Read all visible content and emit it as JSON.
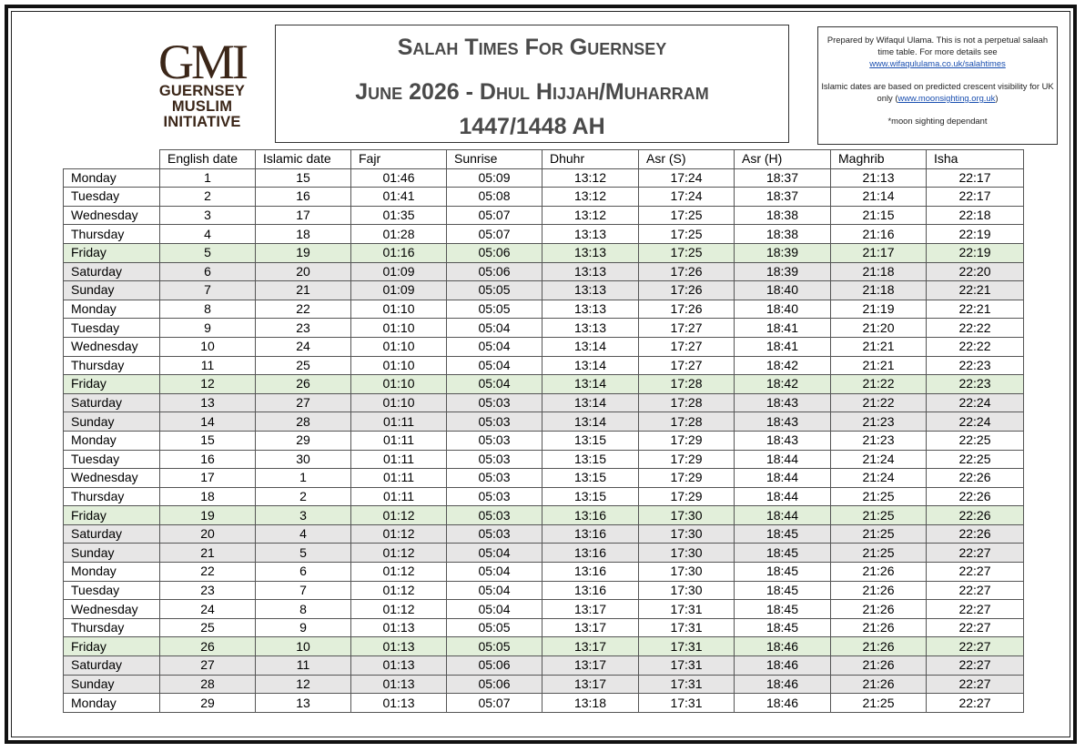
{
  "logo": {
    "mark": "GMI",
    "line1": "GUERNSEY",
    "line2": "MUSLIM",
    "line3": "INITIATIVE"
  },
  "title": {
    "line1": "Salah Times For Guernsey",
    "line2": "June 2026 - Dhul Hijjah/Muharram",
    "line3": "1447/1448 AH"
  },
  "notes": {
    "p1_text": "Prepared by Wifaqul Ulama.  This is not a perpetual salaah time table. For more details see",
    "p1_link": "www.wifaqululama.co.uk/salahtimes",
    "p2_text": "Islamic dates are based on predicted crescent visibility for UK only (",
    "p2_link": "www.moonsighting.org.uk",
    "p2_close": ")",
    "p3_text": "*moon sighting dependant"
  },
  "table": {
    "headers": [
      "",
      "English date",
      "Islamic date",
      "Fajr",
      "Sunrise",
      "Dhuhr",
      "Asr (S)",
      "Asr (H)",
      "Maghrib",
      "Isha"
    ],
    "rows": [
      [
        "Monday",
        "1",
        "15",
        "01:46",
        "05:09",
        "13:12",
        "17:24",
        "18:37",
        "21:13",
        "22:17"
      ],
      [
        "Tuesday",
        "2",
        "16",
        "01:41",
        "05:08",
        "13:12",
        "17:24",
        "18:37",
        "21:14",
        "22:17"
      ],
      [
        "Wednesday",
        "3",
        "17",
        "01:35",
        "05:07",
        "13:12",
        "17:25",
        "18:38",
        "21:15",
        "22:18"
      ],
      [
        "Thursday",
        "4",
        "18",
        "01:28",
        "05:07",
        "13:13",
        "17:25",
        "18:38",
        "21:16",
        "22:19"
      ],
      [
        "Friday",
        "5",
        "19",
        "01:16",
        "05:06",
        "13:13",
        "17:25",
        "18:39",
        "21:17",
        "22:19"
      ],
      [
        "Saturday",
        "6",
        "20",
        "01:09",
        "05:06",
        "13:13",
        "17:26",
        "18:39",
        "21:18",
        "22:20"
      ],
      [
        "Sunday",
        "7",
        "21",
        "01:09",
        "05:05",
        "13:13",
        "17:26",
        "18:40",
        "21:18",
        "22:21"
      ],
      [
        "Monday",
        "8",
        "22",
        "01:10",
        "05:05",
        "13:13",
        "17:26",
        "18:40",
        "21:19",
        "22:21"
      ],
      [
        "Tuesday",
        "9",
        "23",
        "01:10",
        "05:04",
        "13:13",
        "17:27",
        "18:41",
        "21:20",
        "22:22"
      ],
      [
        "Wednesday",
        "10",
        "24",
        "01:10",
        "05:04",
        "13:14",
        "17:27",
        "18:41",
        "21:21",
        "22:22"
      ],
      [
        "Thursday",
        "11",
        "25",
        "01:10",
        "05:04",
        "13:14",
        "17:27",
        "18:42",
        "21:21",
        "22:23"
      ],
      [
        "Friday",
        "12",
        "26",
        "01:10",
        "05:04",
        "13:14",
        "17:28",
        "18:42",
        "21:22",
        "22:23"
      ],
      [
        "Saturday",
        "13",
        "27",
        "01:10",
        "05:03",
        "13:14",
        "17:28",
        "18:43",
        "21:22",
        "22:24"
      ],
      [
        "Sunday",
        "14",
        "28",
        "01:11",
        "05:03",
        "13:14",
        "17:28",
        "18:43",
        "21:23",
        "22:24"
      ],
      [
        "Monday",
        "15",
        "29",
        "01:11",
        "05:03",
        "13:15",
        "17:29",
        "18:43",
        "21:23",
        "22:25"
      ],
      [
        "Tuesday",
        "16",
        "30",
        "01:11",
        "05:03",
        "13:15",
        "17:29",
        "18:44",
        "21:24",
        "22:25"
      ],
      [
        "Wednesday",
        "17",
        "1",
        "01:11",
        "05:03",
        "13:15",
        "17:29",
        "18:44",
        "21:24",
        "22:26"
      ],
      [
        "Thursday",
        "18",
        "2",
        "01:11",
        "05:03",
        "13:15",
        "17:29",
        "18:44",
        "21:25",
        "22:26"
      ],
      [
        "Friday",
        "19",
        "3",
        "01:12",
        "05:03",
        "13:16",
        "17:30",
        "18:44",
        "21:25",
        "22:26"
      ],
      [
        "Saturday",
        "20",
        "4",
        "01:12",
        "05:03",
        "13:16",
        "17:30",
        "18:45",
        "21:25",
        "22:26"
      ],
      [
        "Sunday",
        "21",
        "5",
        "01:12",
        "05:04",
        "13:16",
        "17:30",
        "18:45",
        "21:25",
        "22:27"
      ],
      [
        "Monday",
        "22",
        "6",
        "01:12",
        "05:04",
        "13:16",
        "17:30",
        "18:45",
        "21:26",
        "22:27"
      ],
      [
        "Tuesday",
        "23",
        "7",
        "01:12",
        "05:04",
        "13:16",
        "17:30",
        "18:45",
        "21:26",
        "22:27"
      ],
      [
        "Wednesday",
        "24",
        "8",
        "01:12",
        "05:04",
        "13:17",
        "17:31",
        "18:45",
        "21:26",
        "22:27"
      ],
      [
        "Thursday",
        "25",
        "9",
        "01:13",
        "05:05",
        "13:17",
        "17:31",
        "18:45",
        "21:26",
        "22:27"
      ],
      [
        "Friday",
        "26",
        "10",
        "01:13",
        "05:05",
        "13:17",
        "17:31",
        "18:46",
        "21:26",
        "22:27"
      ],
      [
        "Saturday",
        "27",
        "11",
        "01:13",
        "05:06",
        "13:17",
        "17:31",
        "18:46",
        "21:26",
        "22:27"
      ],
      [
        "Sunday",
        "28",
        "12",
        "01:13",
        "05:06",
        "13:17",
        "17:31",
        "18:46",
        "21:26",
        "22:27"
      ],
      [
        "Monday",
        "29",
        "13",
        "01:13",
        "05:07",
        "13:18",
        "17:31",
        "18:46",
        "21:25",
        "22:27"
      ]
    ]
  },
  "colors": {
    "friday_row": "#e2efda",
    "weekend_row": "#e7e6e6",
    "logo_brown": "#3b2618",
    "title_gray": "#4a4a4a",
    "link_blue": "#1a4fb0"
  }
}
